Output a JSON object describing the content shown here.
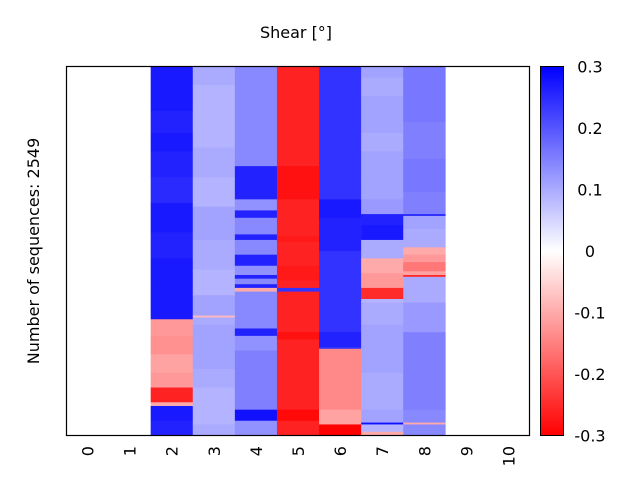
{
  "chart_data": {
    "type": "heatmap",
    "title": "Shear [°]",
    "xlabel": "",
    "ylabel": "Number of sequences: 2549",
    "x_categories": [
      "0",
      "1",
      "2",
      "3",
      "4",
      "5",
      "6",
      "7",
      "8",
      "9",
      "10"
    ],
    "y_range": [
      0,
      2549
    ],
    "grid": false,
    "colorbar": {
      "min": -0.3,
      "max": 0.3,
      "ticks": [
        "0.3",
        "0.2",
        "0.1",
        "0",
        "-0.1",
        "-0.2",
        "-0.3"
      ],
      "tick_values": [
        0.3,
        0.2,
        0.1,
        0.0,
        -0.1,
        -0.2,
        -0.3
      ],
      "colormap": "bwr_reversed",
      "low_color": "#ff0000",
      "mid_color": "#ffffff",
      "high_color": "#0000ff",
      "placement": "right"
    },
    "note": "columns[].segments list contiguous row ranges as fractions of all sequences (0 = first/top row, 1 = last/bottom row) with the approximate shear value",
    "columns": [
      {
        "position": "0",
        "segments": []
      },
      {
        "position": "1",
        "segments": []
      },
      {
        "position": "2",
        "segments": [
          {
            "from": 0.0,
            "to": 0.02,
            "value": 0.27
          },
          {
            "from": 0.02,
            "to": 0.12,
            "value": 0.27
          },
          {
            "from": 0.12,
            "to": 0.18,
            "value": 0.26
          },
          {
            "from": 0.18,
            "to": 0.23,
            "value": 0.27
          },
          {
            "from": 0.23,
            "to": 0.3,
            "value": 0.26
          },
          {
            "from": 0.3,
            "to": 0.37,
            "value": 0.25
          },
          {
            "from": 0.37,
            "to": 0.45,
            "value": 0.27
          },
          {
            "from": 0.45,
            "to": 0.52,
            "value": 0.26
          },
          {
            "from": 0.52,
            "to": 0.58,
            "value": 0.27
          },
          {
            "from": 0.58,
            "to": 0.685,
            "value": 0.27
          },
          {
            "from": 0.685,
            "to": 0.73,
            "value": -0.12
          },
          {
            "from": 0.73,
            "to": 0.78,
            "value": -0.13
          },
          {
            "from": 0.78,
            "to": 0.83,
            "value": -0.11
          },
          {
            "from": 0.83,
            "to": 0.87,
            "value": -0.12
          },
          {
            "from": 0.87,
            "to": 0.91,
            "value": -0.26
          },
          {
            "from": 0.91,
            "to": 0.92,
            "value": -0.1
          },
          {
            "from": 0.92,
            "to": 0.96,
            "value": 0.27
          },
          {
            "from": 0.96,
            "to": 1.0,
            "value": 0.26
          }
        ]
      },
      {
        "position": "3",
        "segments": [
          {
            "from": 0.0,
            "to": 0.05,
            "value": 0.1
          },
          {
            "from": 0.05,
            "to": 0.22,
            "value": 0.09
          },
          {
            "from": 0.22,
            "to": 0.3,
            "value": 0.1
          },
          {
            "from": 0.3,
            "to": 0.38,
            "value": 0.09
          },
          {
            "from": 0.38,
            "to": 0.47,
            "value": 0.11
          },
          {
            "from": 0.47,
            "to": 0.55,
            "value": 0.1
          },
          {
            "from": 0.55,
            "to": 0.62,
            "value": 0.09
          },
          {
            "from": 0.62,
            "to": 0.675,
            "value": 0.11
          },
          {
            "from": 0.675,
            "to": 0.68,
            "value": -0.08
          },
          {
            "from": 0.68,
            "to": 0.7,
            "value": 0.1
          },
          {
            "from": 0.7,
            "to": 0.82,
            "value": 0.11
          },
          {
            "from": 0.82,
            "to": 0.87,
            "value": 0.1
          },
          {
            "from": 0.87,
            "to": 0.92,
            "value": 0.09
          },
          {
            "from": 0.92,
            "to": 0.97,
            "value": 0.09
          },
          {
            "from": 0.97,
            "to": 1.0,
            "value": 0.1
          }
        ]
      },
      {
        "position": "4",
        "segments": [
          {
            "from": 0.0,
            "to": 0.27,
            "value": 0.14
          },
          {
            "from": 0.27,
            "to": 0.36,
            "value": 0.26
          },
          {
            "from": 0.36,
            "to": 0.39,
            "value": 0.13
          },
          {
            "from": 0.39,
            "to": 0.41,
            "value": 0.26
          },
          {
            "from": 0.41,
            "to": 0.455,
            "value": 0.14
          },
          {
            "from": 0.455,
            "to": 0.47,
            "value": 0.26
          },
          {
            "from": 0.47,
            "to": 0.51,
            "value": 0.14
          },
          {
            "from": 0.51,
            "to": 0.54,
            "value": 0.26
          },
          {
            "from": 0.54,
            "to": 0.565,
            "value": 0.13
          },
          {
            "from": 0.565,
            "to": 0.575,
            "value": 0.26
          },
          {
            "from": 0.575,
            "to": 0.59,
            "value": 0.14
          },
          {
            "from": 0.59,
            "to": 0.6,
            "value": 0.26
          },
          {
            "from": 0.6,
            "to": 0.61,
            "value": -0.1
          },
          {
            "from": 0.61,
            "to": 0.71,
            "value": 0.14
          },
          {
            "from": 0.71,
            "to": 0.73,
            "value": 0.26
          },
          {
            "from": 0.73,
            "to": 0.77,
            "value": 0.13
          },
          {
            "from": 0.77,
            "to": 0.93,
            "value": 0.15
          },
          {
            "from": 0.93,
            "to": 0.96,
            "value": 0.28
          },
          {
            "from": 0.96,
            "to": 1.0,
            "value": 0.13
          }
        ]
      },
      {
        "position": "5",
        "segments": [
          {
            "from": 0.0,
            "to": 0.27,
            "value": -0.26
          },
          {
            "from": 0.27,
            "to": 0.36,
            "value": -0.28
          },
          {
            "from": 0.36,
            "to": 0.46,
            "value": -0.26
          },
          {
            "from": 0.46,
            "to": 0.475,
            "value": -0.27
          },
          {
            "from": 0.475,
            "to": 0.54,
            "value": -0.26
          },
          {
            "from": 0.54,
            "to": 0.58,
            "value": -0.27
          },
          {
            "from": 0.58,
            "to": 0.6,
            "value": -0.26
          },
          {
            "from": 0.6,
            "to": 0.61,
            "value": 0.24
          },
          {
            "from": 0.61,
            "to": 0.72,
            "value": -0.26
          },
          {
            "from": 0.72,
            "to": 0.74,
            "value": -0.28
          },
          {
            "from": 0.74,
            "to": 0.93,
            "value": -0.26
          },
          {
            "from": 0.93,
            "to": 0.96,
            "value": -0.29
          },
          {
            "from": 0.96,
            "to": 1.0,
            "value": -0.26
          }
        ]
      },
      {
        "position": "6",
        "segments": [
          {
            "from": 0.0,
            "to": 0.36,
            "value": 0.24
          },
          {
            "from": 0.36,
            "to": 0.41,
            "value": 0.27
          },
          {
            "from": 0.41,
            "to": 0.5,
            "value": 0.26
          },
          {
            "from": 0.5,
            "to": 0.72,
            "value": 0.24
          },
          {
            "from": 0.72,
            "to": 0.76,
            "value": 0.26
          },
          {
            "from": 0.76,
            "to": 0.765,
            "value": 0.24
          },
          {
            "from": 0.765,
            "to": 0.93,
            "value": -0.14
          },
          {
            "from": 0.93,
            "to": 0.97,
            "value": -0.11
          },
          {
            "from": 0.97,
            "to": 1.0,
            "value": -0.3
          }
        ]
      },
      {
        "position": "7",
        "segments": [
          {
            "from": 0.0,
            "to": 0.03,
            "value": 0.11
          },
          {
            "from": 0.03,
            "to": 0.08,
            "value": 0.1
          },
          {
            "from": 0.08,
            "to": 0.18,
            "value": 0.11
          },
          {
            "from": 0.18,
            "to": 0.23,
            "value": 0.1
          },
          {
            "from": 0.23,
            "to": 0.3,
            "value": 0.11
          },
          {
            "from": 0.3,
            "to": 0.36,
            "value": 0.11
          },
          {
            "from": 0.36,
            "to": 0.4,
            "value": 0.12
          },
          {
            "from": 0.4,
            "to": 0.43,
            "value": 0.26
          },
          {
            "from": 0.43,
            "to": 0.47,
            "value": 0.27
          },
          {
            "from": 0.47,
            "to": 0.52,
            "value": 0.1
          },
          {
            "from": 0.52,
            "to": 0.56,
            "value": -0.1
          },
          {
            "from": 0.56,
            "to": 0.6,
            "value": -0.12
          },
          {
            "from": 0.6,
            "to": 0.63,
            "value": -0.25
          },
          {
            "from": 0.63,
            "to": 0.64,
            "value": 0.09
          },
          {
            "from": 0.64,
            "to": 0.7,
            "value": 0.1
          },
          {
            "from": 0.7,
            "to": 0.83,
            "value": 0.11
          },
          {
            "from": 0.83,
            "to": 0.93,
            "value": 0.1
          },
          {
            "from": 0.93,
            "to": 0.965,
            "value": 0.11
          },
          {
            "from": 0.965,
            "to": 0.97,
            "value": 0.28
          },
          {
            "from": 0.97,
            "to": 0.99,
            "value": 0.09
          },
          {
            "from": 0.99,
            "to": 1.0,
            "value": -0.1
          }
        ]
      },
      {
        "position": "8",
        "segments": [
          {
            "from": 0.0,
            "to": 0.15,
            "value": 0.16
          },
          {
            "from": 0.15,
            "to": 0.25,
            "value": 0.15
          },
          {
            "from": 0.25,
            "to": 0.34,
            "value": 0.16
          },
          {
            "from": 0.34,
            "to": 0.4,
            "value": 0.15
          },
          {
            "from": 0.4,
            "to": 0.405,
            "value": 0.25
          },
          {
            "from": 0.405,
            "to": 0.44,
            "value": 0.11
          },
          {
            "from": 0.44,
            "to": 0.49,
            "value": 0.1
          },
          {
            "from": 0.49,
            "to": 0.51,
            "value": -0.1
          },
          {
            "from": 0.51,
            "to": 0.53,
            "value": -0.12
          },
          {
            "from": 0.53,
            "to": 0.555,
            "value": -0.16
          },
          {
            "from": 0.555,
            "to": 0.565,
            "value": -0.11
          },
          {
            "from": 0.565,
            "to": 0.57,
            "value": -0.25
          },
          {
            "from": 0.57,
            "to": 0.64,
            "value": 0.1
          },
          {
            "from": 0.64,
            "to": 0.72,
            "value": 0.12
          },
          {
            "from": 0.72,
            "to": 0.93,
            "value": 0.15
          },
          {
            "from": 0.93,
            "to": 0.965,
            "value": 0.14
          },
          {
            "from": 0.965,
            "to": 0.97,
            "value": -0.1
          },
          {
            "from": 0.97,
            "to": 1.0,
            "value": 0.14
          }
        ]
      },
      {
        "position": "9",
        "segments": []
      },
      {
        "position": "10",
        "segments": []
      }
    ]
  }
}
